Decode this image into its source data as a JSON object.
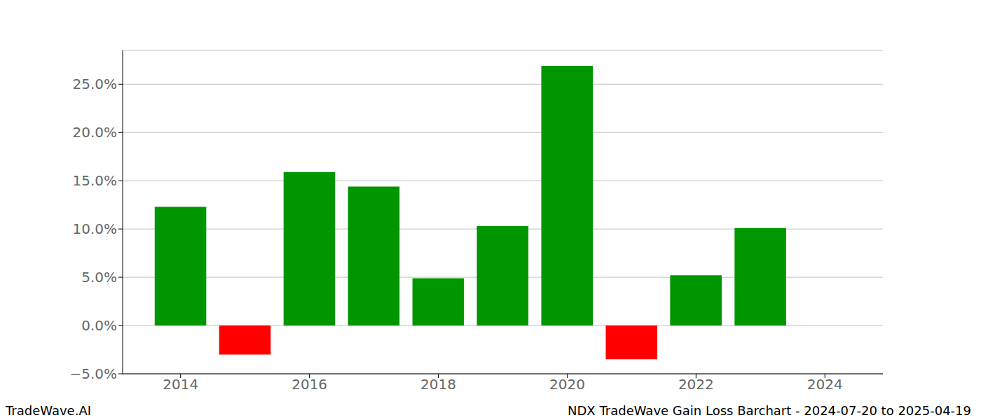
{
  "chart_data": {
    "type": "bar",
    "title": "NDX TradeWave Gain Loss Barchart - 2024-07-20 to 2025-04-19",
    "annotations": [
      "TradeWave.AI"
    ],
    "x": [
      2014,
      2015,
      2016,
      2017,
      2018,
      2019,
      2020,
      2021,
      2022,
      2023
    ],
    "values": [
      12.3,
      -3.0,
      15.9,
      14.4,
      4.9,
      10.3,
      26.9,
      -3.5,
      5.2,
      10.1
    ],
    "colors": [
      "#009600",
      "#ff0000",
      "#009600",
      "#009600",
      "#009600",
      "#009600",
      "#009600",
      "#ff0000",
      "#009600",
      "#009600"
    ],
    "xlim": [
      2013.1,
      2024.9
    ],
    "xticks": [
      2014,
      2016,
      2018,
      2020,
      2022,
      2024
    ],
    "ylim": [
      -5,
      28.5
    ],
    "yticks": [
      {
        "value": -5,
        "label": "−5.0%"
      },
      {
        "value": 0,
        "label": "0.0%"
      },
      {
        "value": 5,
        "label": "5.0%"
      },
      {
        "value": 10,
        "label": "10.0%"
      },
      {
        "value": 15,
        "label": "15.0%"
      },
      {
        "value": 20,
        "label": "20.0%"
      },
      {
        "value": 25,
        "label": "25.0%"
      }
    ],
    "grid": true
  }
}
